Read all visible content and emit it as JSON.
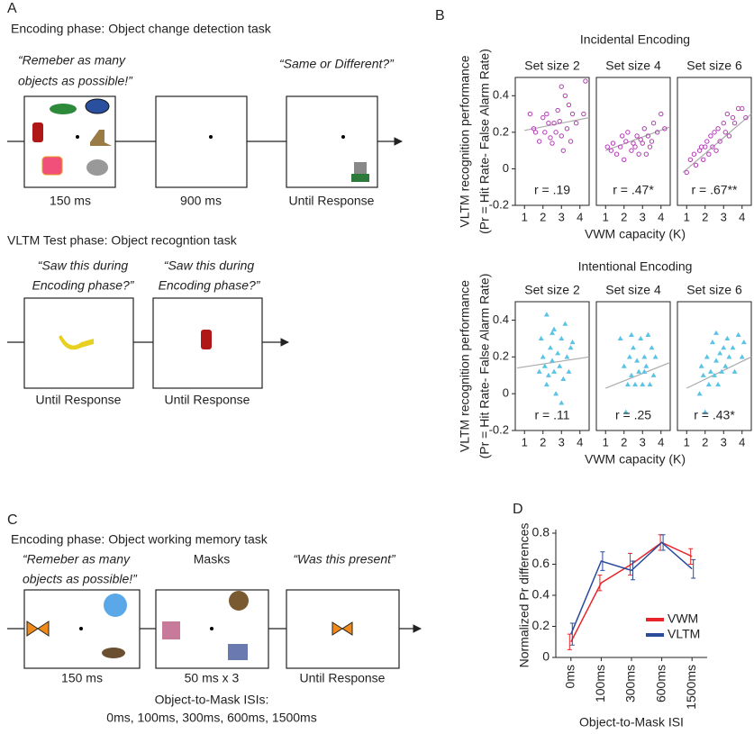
{
  "panel_a": {
    "label": "A",
    "encoding_title": "Encoding phase: Object change detection task",
    "encoding_quote": [
      "“Remeber as many",
      "objects as possible!”"
    ],
    "probe_quote": "“Same or Different?”",
    "durations": [
      "150 ms",
      "900 ms",
      "Until Response"
    ],
    "test_title": "VLTM Test phase: Object recogntion task",
    "test_quotes": [
      [
        "“Saw this during",
        "Encoding phase?”"
      ],
      [
        "“Saw this during",
        "Encoding phase?”"
      ]
    ],
    "test_durations": [
      "Until Response",
      "Until Response"
    ]
  },
  "panel_b": {
    "label": "B",
    "rows": [
      {
        "title": "Incidental Encoding",
        "y_label": [
          "VLTM recognition performance",
          "(Pr = Hit Rate- False Alarm Rate)"
        ],
        "x_label": "VWM capacity (K)"
      },
      {
        "title": "Intentional Encoding",
        "y_label": [
          "VLTM recognition performance",
          "(Pr = Hit Rate- False Alarm Rate)"
        ],
        "x_label": "VWM capacity (K)"
      }
    ]
  },
  "panel_c": {
    "label": "C",
    "encoding_title": "Encoding phase: Object working memory task",
    "encoding_quote": [
      "“Remeber as many",
      "objects as possible!”"
    ],
    "mask_label": "Masks",
    "probe_quote": "“Was this present”",
    "durations": [
      "150 ms",
      "50 ms x 3",
      "Until Response"
    ],
    "isi_title": "Object-to-Mask ISIs:",
    "isi_list": "0ms, 100ms, 300ms, 600ms, 1500ms"
  },
  "panel_d": {
    "label": "D"
  },
  "chart_data": [
    {
      "type": "scatter",
      "row": 0,
      "title": "Set size 2",
      "annotation": "r = .19",
      "color": "#b43cb4",
      "marker": "circle",
      "x": [
        1.3,
        1.5,
        1.6,
        1.8,
        2.0,
        2.1,
        2.2,
        2.3,
        2.4,
        2.5,
        2.6,
        2.7,
        2.8,
        2.9,
        3.0,
        3.0,
        3.1,
        3.2,
        3.3,
        3.4,
        3.5,
        3.6,
        3.8,
        4.2,
        4.3
      ],
      "values": [
        0.3,
        0.22,
        0.2,
        0.15,
        0.28,
        0.2,
        0.3,
        0.25,
        0.17,
        0.14,
        0.25,
        0.2,
        0.32,
        0.26,
        0.18,
        0.45,
        0.1,
        0.4,
        0.22,
        0.35,
        0.15,
        0.3,
        0.25,
        0.3,
        0.48
      ],
      "trend_line": {
        "x": [
          1.0,
          4.5
        ],
        "values": [
          0.21,
          0.28
        ]
      },
      "xlim": [
        0.5,
        4.5
      ],
      "ylim": [
        -0.2,
        0.5
      ],
      "xticks": [
        1,
        2,
        3,
        4
      ],
      "yticks": [
        0.4,
        0.2,
        0,
        -0.2
      ]
    },
    {
      "type": "scatter",
      "row": 0,
      "title": "Set size 4",
      "annotation": "r = .47*",
      "color": "#b43cb4",
      "marker": "circle",
      "x": [
        1.1,
        1.3,
        1.4,
        1.6,
        1.8,
        1.9,
        2.0,
        2.1,
        2.2,
        2.4,
        2.5,
        2.6,
        2.7,
        2.8,
        2.9,
        3.0,
        3.1,
        3.2,
        3.3,
        3.5,
        3.6,
        3.8,
        4.0,
        4.2,
        3.4
      ],
      "values": [
        0.12,
        0.1,
        0.14,
        0.08,
        0.12,
        0.18,
        0.05,
        0.15,
        0.2,
        0.1,
        0.14,
        0.12,
        0.18,
        0.08,
        0.16,
        0.14,
        0.22,
        0.08,
        0.18,
        0.15,
        0.25,
        0.2,
        0.3,
        0.22,
        0.12
      ],
      "trend_line": {
        "x": [
          1.0,
          4.5
        ],
        "values": [
          0.1,
          0.23
        ]
      },
      "xlim": [
        0.5,
        4.5
      ],
      "ylim": [
        -0.2,
        0.5
      ],
      "xticks": [
        1,
        2,
        3,
        4
      ]
    },
    {
      "type": "scatter",
      "row": 0,
      "title": "Set size 6",
      "annotation": "r = .67**",
      "color": "#b43cb4",
      "marker": "circle",
      "x": [
        1.0,
        1.2,
        1.4,
        1.5,
        1.7,
        1.8,
        1.9,
        2.0,
        2.1,
        2.2,
        2.3,
        2.4,
        2.5,
        2.6,
        2.7,
        2.8,
        3.0,
        3.1,
        3.2,
        3.3,
        3.5,
        3.6,
        3.8,
        4.0,
        4.2
      ],
      "values": [
        -0.02,
        0.05,
        0.08,
        0.02,
        0.1,
        0.12,
        0.05,
        0.12,
        0.15,
        0.08,
        0.18,
        0.12,
        0.2,
        0.1,
        0.22,
        0.15,
        0.25,
        0.2,
        0.3,
        0.18,
        0.28,
        0.25,
        0.33,
        0.33,
        0.28
      ],
      "trend_line": {
        "x": [
          0.8,
          4.5
        ],
        "values": [
          -0.02,
          0.3
        ]
      },
      "xlim": [
        0.5,
        4.5
      ],
      "ylim": [
        -0.2,
        0.5
      ],
      "xticks": [
        1,
        2,
        3,
        4
      ]
    },
    {
      "type": "scatter",
      "row": 1,
      "title": "Set size 2",
      "annotation": "r = .11",
      "color": "#5bc4e6",
      "marker": "triangle",
      "x": [
        1.8,
        1.9,
        2.0,
        2.1,
        2.2,
        2.2,
        2.3,
        2.4,
        2.5,
        2.6,
        2.6,
        2.7,
        2.8,
        2.9,
        3.0,
        3.1,
        3.2,
        3.3,
        3.4,
        3.5,
        3.6,
        3.0,
        2.5
      ],
      "values": [
        0.12,
        0.3,
        0.2,
        0.15,
        0.05,
        0.43,
        0.1,
        0.25,
        0.18,
        0.12,
        0.35,
        0.0,
        0.22,
        0.15,
        0.3,
        0.08,
        0.38,
        0.2,
        0.12,
        0.25,
        0.28,
        -0.05,
        0.33
      ],
      "trend_line": {
        "x": [
          0.6,
          4.5
        ],
        "values": [
          0.14,
          0.2
        ]
      },
      "xlim": [
        0.5,
        4.5
      ],
      "ylim": [
        -0.2,
        0.5
      ],
      "xticks": [
        1,
        2,
        3,
        4
      ],
      "yticks": [
        0.4,
        0.2,
        0,
        -0.2
      ]
    },
    {
      "type": "scatter",
      "row": 1,
      "title": "Set size 4",
      "annotation": "r = .25",
      "color": "#5bc4e6",
      "marker": "triangle",
      "x": [
        1.8,
        2.0,
        2.1,
        2.2,
        2.3,
        2.4,
        2.5,
        2.6,
        2.7,
        2.8,
        2.9,
        3.0,
        3.1,
        3.2,
        3.3,
        3.4,
        3.5,
        3.6,
        3.7,
        2.4,
        3.1
      ],
      "values": [
        0.3,
        0.15,
        -0.1,
        0.05,
        0.2,
        0.1,
        0.25,
        0.05,
        0.18,
        0.12,
        0.3,
        0.05,
        0.2,
        0.15,
        0.32,
        0.05,
        0.25,
        0.1,
        0.2,
        0.32,
        0.12
      ],
      "trend_line": {
        "x": [
          1.0,
          4.5
        ],
        "values": [
          0.03,
          0.17
        ]
      },
      "xlim": [
        0.5,
        4.5
      ],
      "ylim": [
        -0.2,
        0.5
      ],
      "xticks": [
        1,
        2,
        3,
        4
      ]
    },
    {
      "type": "scatter",
      "row": 1,
      "title": "Set size 6",
      "annotation": "r = .43*",
      "color": "#5bc4e6",
      "marker": "triangle",
      "x": [
        1.7,
        1.8,
        1.9,
        2.0,
        2.1,
        2.2,
        2.3,
        2.4,
        2.5,
        2.6,
        2.7,
        2.8,
        2.9,
        3.0,
        3.1,
        3.2,
        3.3,
        3.5,
        3.6,
        3.8,
        4.0,
        4.1,
        2.6
      ],
      "values": [
        0.0,
        0.15,
        0.1,
        -0.1,
        0.2,
        0.05,
        0.12,
        0.28,
        0.1,
        0.18,
        0.05,
        0.22,
        0.12,
        0.25,
        0.15,
        0.3,
        0.2,
        0.25,
        0.12,
        0.32,
        0.2,
        0.28,
        0.33
      ],
      "trend_line": {
        "x": [
          1.0,
          4.5
        ],
        "values": [
          0.03,
          0.2
        ]
      },
      "xlim": [
        0.5,
        4.5
      ],
      "ylim": [
        -0.2,
        0.5
      ],
      "xticks": [
        1,
        2,
        3,
        4
      ]
    },
    {
      "type": "line",
      "categories": [
        "0ms",
        "100ms",
        "300ms",
        "600ms",
        "1500ms"
      ],
      "series": [
        {
          "name": "VWM",
          "color": "#e8262a",
          "values": [
            0.1,
            0.48,
            0.6,
            0.74,
            0.65
          ],
          "errors": [
            0.05,
            0.05,
            0.07,
            0.05,
            0.05
          ]
        },
        {
          "name": "VLTM",
          "color": "#2a4a9c",
          "values": [
            0.15,
            0.62,
            0.56,
            0.74,
            0.57
          ],
          "errors": [
            0.07,
            0.06,
            0.06,
            0.05,
            0.06
          ]
        }
      ],
      "ylim": [
        0,
        0.8
      ],
      "yticks": [
        0,
        0.2,
        0.4,
        0.6,
        0.8
      ],
      "y_label": "Normalized Pr differences",
      "x_label": "Object-to-Mask ISI",
      "legend": "lower right"
    }
  ]
}
